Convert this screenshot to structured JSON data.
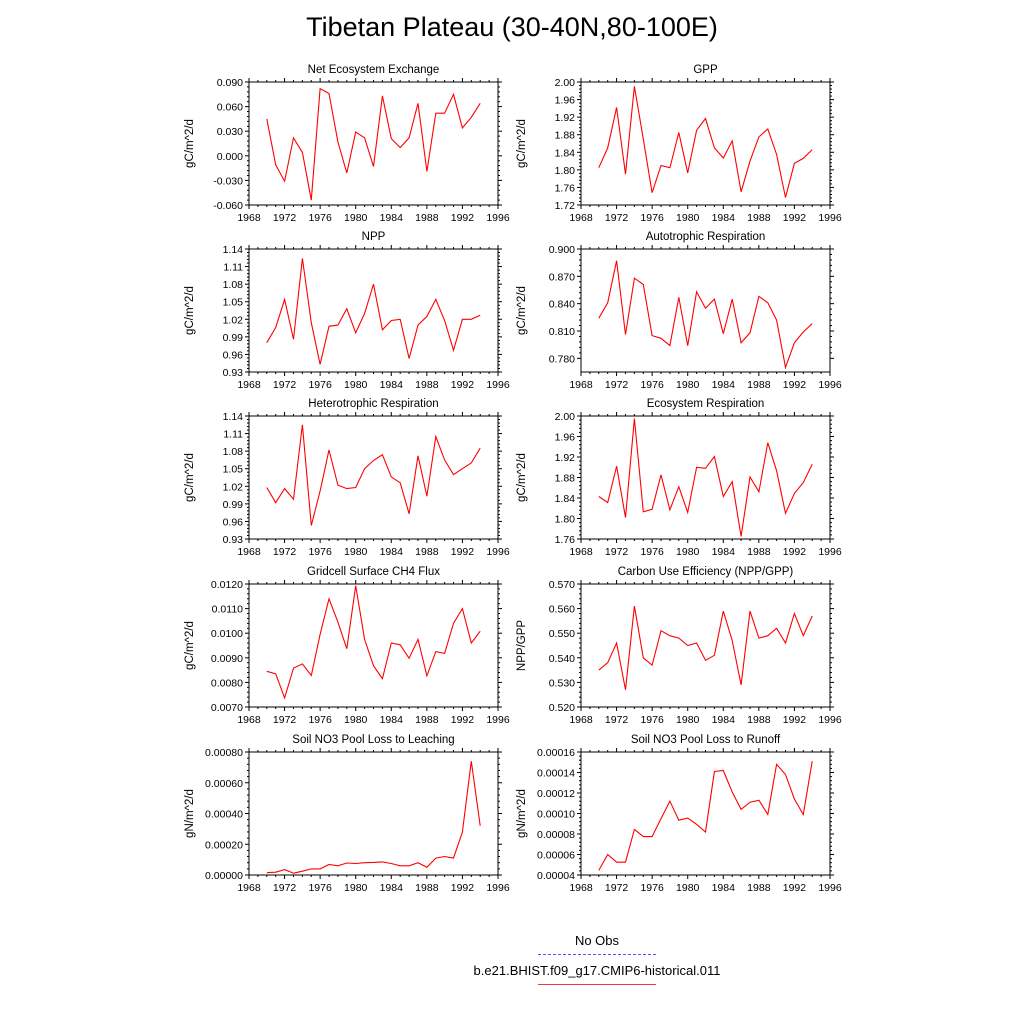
{
  "title": "Tibetan Plateau (30-40N,80-100E)",
  "legend": {
    "obs_label": "No Obs",
    "model_label": "b.e21.BHIST.f09_g17.CMIP6-historical.011",
    "obs_color": "#5555ff",
    "model_color": "#ff0000"
  },
  "chart_data": [
    {
      "type": "line",
      "title": "Net Ecosystem Exchange",
      "ylabel": "gC/m^2/d",
      "xlim": [
        1968,
        1996
      ],
      "xticks": [
        "1968",
        "1972",
        "1976",
        "1980",
        "1984",
        "1988",
        "1992",
        "1996"
      ],
      "ylim": [
        -0.06,
        0.09
      ],
      "yticks": [
        "-0.060",
        "-0.030",
        "0.000",
        "0.030",
        "0.060",
        "0.090"
      ],
      "x": [
        1970,
        1971,
        1972,
        1973,
        1974,
        1975,
        1976,
        1977,
        1978,
        1979,
        1980,
        1981,
        1982,
        1983,
        1984,
        1985,
        1986,
        1987,
        1988,
        1989,
        1990,
        1991,
        1992,
        1993,
        1994
      ],
      "series": [
        {
          "values": [
            0.045,
            -0.011,
            -0.031,
            0.022,
            0.004,
            -0.054,
            0.082,
            0.076,
            0.017,
            -0.021,
            0.029,
            0.022,
            -0.013,
            0.073,
            0.021,
            0.01,
            0.022,
            0.064,
            -0.019,
            0.052,
            0.052,
            0.075,
            0.034,
            0.047,
            0.064
          ]
        }
      ]
    },
    {
      "type": "line",
      "title": "GPP",
      "ylabel": "gC/m^2/d",
      "xlim": [
        1968,
        1996
      ],
      "xticks": [
        "1968",
        "1972",
        "1976",
        "1980",
        "1984",
        "1988",
        "1992",
        "1996"
      ],
      "ylim": [
        1.72,
        2.0
      ],
      "yticks": [
        "1.72",
        "1.76",
        "1.80",
        "1.84",
        "1.88",
        "1.92",
        "1.96",
        "2.00"
      ],
      "x": [
        1970,
        1971,
        1972,
        1973,
        1974,
        1975,
        1976,
        1977,
        1978,
        1979,
        1980,
        1981,
        1982,
        1983,
        1984,
        1985,
        1986,
        1987,
        1988,
        1989,
        1990,
        1991,
        1992,
        1993,
        1994
      ],
      "series": [
        {
          "values": [
            1.805,
            1.85,
            1.942,
            1.79,
            1.99,
            1.87,
            1.748,
            1.81,
            1.805,
            1.885,
            1.793,
            1.89,
            1.917,
            1.85,
            1.827,
            1.866,
            1.75,
            1.82,
            1.875,
            1.893,
            1.835,
            1.737,
            1.815,
            1.826,
            1.846
          ]
        }
      ]
    },
    {
      "type": "line",
      "title": "NPP",
      "ylabel": "gC/m^2/d",
      "xlim": [
        1968,
        1996
      ],
      "xticks": [
        "1968",
        "1972",
        "1976",
        "1980",
        "1984",
        "1988",
        "1992",
        "1996"
      ],
      "ylim": [
        0.93,
        1.14
      ],
      "yticks": [
        "0.93",
        "0.96",
        "0.99",
        "1.02",
        "1.05",
        "1.08",
        "1.11",
        "1.14"
      ],
      "x": [
        1970,
        1971,
        1972,
        1973,
        1974,
        1975,
        1976,
        1977,
        1978,
        1979,
        1980,
        1981,
        1982,
        1983,
        1984,
        1985,
        1986,
        1987,
        1988,
        1989,
        1990,
        1991,
        1992,
        1993,
        1994
      ],
      "series": [
        {
          "values": [
            0.98,
            1.006,
            1.054,
            0.986,
            1.124,
            1.014,
            0.943,
            1.008,
            1.01,
            1.038,
            0.997,
            1.03,
            1.08,
            1.002,
            1.018,
            1.02,
            0.953,
            1.01,
            1.025,
            1.054,
            1.018,
            0.967,
            1.02,
            1.02,
            1.027
          ]
        }
      ]
    },
    {
      "type": "line",
      "title": "Autotrophic Respiration",
      "ylabel": "gC/m^2/d",
      "xlim": [
        1968,
        1996
      ],
      "xticks": [
        "1968",
        "1972",
        "1976",
        "1980",
        "1984",
        "1988",
        "1992",
        "1996"
      ],
      "ylim": [
        0.765,
        0.9
      ],
      "yticks": [
        "0.780",
        "0.810",
        "0.840",
        "0.870",
        "0.900"
      ],
      "x": [
        1970,
        1971,
        1972,
        1973,
        1974,
        1975,
        1976,
        1977,
        1978,
        1979,
        1980,
        1981,
        1982,
        1983,
        1984,
        1985,
        1986,
        1987,
        1988,
        1989,
        1990,
        1991,
        1992,
        1993,
        1994
      ],
      "series": [
        {
          "values": [
            0.824,
            0.841,
            0.887,
            0.806,
            0.868,
            0.861,
            0.805,
            0.802,
            0.794,
            0.847,
            0.794,
            0.853,
            0.835,
            0.845,
            0.807,
            0.845,
            0.797,
            0.808,
            0.848,
            0.841,
            0.822,
            0.77,
            0.797,
            0.809,
            0.818
          ]
        }
      ]
    },
    {
      "type": "line",
      "title": "Heterotrophic Respiration",
      "ylabel": "gC/m^2/d",
      "xlim": [
        1968,
        1996
      ],
      "xticks": [
        "1968",
        "1972",
        "1976",
        "1980",
        "1984",
        "1988",
        "1992",
        "1996"
      ],
      "ylim": [
        0.93,
        1.14
      ],
      "yticks": [
        "0.93",
        "0.96",
        "0.99",
        "1.02",
        "1.05",
        "1.08",
        "1.11",
        "1.14"
      ],
      "x": [
        1970,
        1971,
        1972,
        1973,
        1974,
        1975,
        1976,
        1977,
        1978,
        1979,
        1980,
        1981,
        1982,
        1983,
        1984,
        1985,
        1986,
        1987,
        1988,
        1989,
        1990,
        1991,
        1992,
        1993,
        1994
      ],
      "series": [
        {
          "values": [
            1.018,
            0.992,
            1.016,
            0.998,
            1.125,
            0.953,
            1.012,
            1.082,
            1.022,
            1.016,
            1.018,
            1.05,
            1.064,
            1.074,
            1.036,
            1.026,
            0.973,
            1.072,
            1.003,
            1.105,
            1.065,
            1.04,
            1.05,
            1.06,
            1.085
          ]
        }
      ]
    },
    {
      "type": "line",
      "title": "Ecosystem Respiration",
      "ylabel": "gC/m^2/d",
      "xlim": [
        1968,
        1996
      ],
      "xticks": [
        "1968",
        "1972",
        "1976",
        "1980",
        "1984",
        "1988",
        "1992",
        "1996"
      ],
      "ylim": [
        1.76,
        2.0
      ],
      "yticks": [
        "1.76",
        "1.80",
        "1.84",
        "1.88",
        "1.92",
        "1.96",
        "2.00"
      ],
      "x": [
        1970,
        1971,
        1972,
        1973,
        1974,
        1975,
        1976,
        1977,
        1978,
        1979,
        1980,
        1981,
        1982,
        1983,
        1984,
        1985,
        1986,
        1987,
        1988,
        1989,
        1990,
        1991,
        1992,
        1993,
        1994
      ],
      "series": [
        {
          "values": [
            1.843,
            1.831,
            1.902,
            1.802,
            1.995,
            1.813,
            1.818,
            1.885,
            1.817,
            1.862,
            1.812,
            1.9,
            1.898,
            1.921,
            1.843,
            1.872,
            1.765,
            1.881,
            1.852,
            1.948,
            1.893,
            1.81,
            1.849,
            1.87,
            1.906
          ]
        }
      ]
    },
    {
      "type": "line",
      "title": "Gridcell Surface CH4 Flux",
      "ylabel": "gC/m^2/d",
      "xlim": [
        1968,
        1996
      ],
      "xticks": [
        "1968",
        "1972",
        "1976",
        "1980",
        "1984",
        "1988",
        "1992",
        "1996"
      ],
      "ylim": [
        0.007,
        0.012
      ],
      "yticks": [
        "0.0070",
        "0.0080",
        "0.0090",
        "0.0100",
        "0.0110",
        "0.0120"
      ],
      "x": [
        1970,
        1971,
        1972,
        1973,
        1974,
        1975,
        1976,
        1977,
        1978,
        1979,
        1980,
        1981,
        1982,
        1983,
        1984,
        1985,
        1986,
        1987,
        1988,
        1989,
        1990,
        1991,
        1992,
        1993,
        1994
      ],
      "series": [
        {
          "values": [
            0.00845,
            0.00835,
            0.00737,
            0.00858,
            0.00875,
            0.00828,
            0.00995,
            0.0114,
            0.01045,
            0.00937,
            0.01193,
            0.00975,
            0.00868,
            0.00815,
            0.0096,
            0.00953,
            0.00898,
            0.00975,
            0.00827,
            0.00925,
            0.00918,
            0.0104,
            0.011,
            0.0096,
            0.01008
          ]
        }
      ]
    },
    {
      "type": "line",
      "title": "Carbon Use Efficiency (NPP/GPP)",
      "ylabel": "NPP/GPP",
      "xlim": [
        1968,
        1996
      ],
      "xticks": [
        "1968",
        "1972",
        "1976",
        "1980",
        "1984",
        "1988",
        "1992",
        "1996"
      ],
      "ylim": [
        0.52,
        0.57
      ],
      "yticks": [
        "0.520",
        "0.530",
        "0.540",
        "0.550",
        "0.560",
        "0.570"
      ],
      "x": [
        1970,
        1971,
        1972,
        1973,
        1974,
        1975,
        1976,
        1977,
        1978,
        1979,
        1980,
        1981,
        1982,
        1983,
        1984,
        1985,
        1986,
        1987,
        1988,
        1989,
        1990,
        1991,
        1992,
        1993,
        1994
      ],
      "series": [
        {
          "values": [
            0.535,
            0.538,
            0.546,
            0.527,
            0.561,
            0.54,
            0.537,
            0.551,
            0.549,
            0.548,
            0.545,
            0.546,
            0.539,
            0.541,
            0.559,
            0.547,
            0.529,
            0.559,
            0.548,
            0.549,
            0.552,
            0.546,
            0.558,
            0.549,
            0.557
          ]
        }
      ]
    },
    {
      "type": "line",
      "title": "Soil NO3 Pool Loss to Leaching",
      "ylabel": "gN/m^2/d",
      "xlim": [
        1968,
        1996
      ],
      "xticks": [
        "1968",
        "1972",
        "1976",
        "1980",
        "1984",
        "1988",
        "1992",
        "1996"
      ],
      "ylim": [
        0,
        0.0008
      ],
      "yticks": [
        "0.00000",
        "0.00020",
        "0.00040",
        "0.00060",
        "0.00080"
      ],
      "x": [
        1970,
        1971,
        1972,
        1973,
        1974,
        1975,
        1976,
        1977,
        1978,
        1979,
        1980,
        1981,
        1982,
        1983,
        1984,
        1985,
        1986,
        1987,
        1988,
        1989,
        1990,
        1991,
        1992,
        1993,
        1994
      ],
      "series": [
        {
          "values": [
            1.5e-05,
            1.8e-05,
            3.5e-05,
            1.2e-05,
            2.5e-05,
            4e-05,
            4e-05,
            6.8e-05,
            6e-05,
            7.8e-05,
            7.5e-05,
            8e-05,
            8.2e-05,
            8.5e-05,
            7.5e-05,
            6e-05,
            6e-05,
            8e-05,
            5e-05,
            0.00011,
            0.00012,
            0.00011,
            0.00028,
            0.00074,
            0.00032
          ]
        }
      ]
    },
    {
      "type": "line",
      "title": "Soil NO3 Pool Loss to Runoff",
      "ylabel": "gN/m^2/d",
      "xlim": [
        1968,
        1996
      ],
      "xticks": [
        "1968",
        "1972",
        "1976",
        "1980",
        "1984",
        "1988",
        "1992",
        "1996"
      ],
      "ylim": [
        4e-05,
        0.00016
      ],
      "yticks": [
        "0.00004",
        "0.00006",
        "0.00008",
        "0.00010",
        "0.00012",
        "0.00014",
        "0.00016"
      ],
      "x": [
        1970,
        1971,
        1972,
        1973,
        1974,
        1975,
        1976,
        1977,
        1978,
        1979,
        1980,
        1981,
        1982,
        1983,
        1984,
        1985,
        1986,
        1987,
        1988,
        1989,
        1990,
        1991,
        1992,
        1993,
        1994
      ],
      "series": [
        {
          "values": [
            4.45e-05,
            6e-05,
            5.25e-05,
            5.25e-05,
            8.45e-05,
            7.75e-05,
            7.75e-05,
            9.5e-05,
            0.000112,
            9.35e-05,
            9.55e-05,
            8.95e-05,
            8.2e-05,
            0.000141,
            0.000142,
            0.000121,
            0.000104,
            0.000111,
            0.000113,
            9.9e-05,
            0.000148,
            0.000138,
            0.000114,
            9.9e-05,
            0.000151
          ]
        }
      ]
    }
  ]
}
